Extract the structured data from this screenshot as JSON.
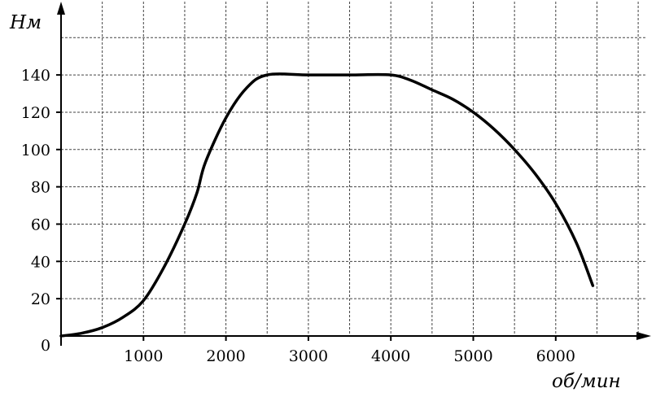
{
  "chart_data": {
    "type": "line",
    "xlabel": "об/мин",
    "ylabel": "Нм",
    "origin_label": "0",
    "xlim": [
      0,
      7200
    ],
    "ylim": [
      0,
      160
    ],
    "x_grid_step": 500,
    "y_grid_step": 20,
    "x_ticks": [
      1000,
      2000,
      3000,
      4000,
      5000,
      6000
    ],
    "y_ticks": [
      20,
      40,
      60,
      80,
      100,
      120,
      140
    ],
    "grid": true,
    "series": [
      {
        "x": [
          0,
          250,
          500,
          750,
          1000,
          1250,
          1500,
          1650,
          1750,
          2000,
          2250,
          2500,
          3000,
          3500,
          4000,
          4250,
          4500,
          4750,
          5000,
          5250,
          5500,
          5750,
          6000,
          6250,
          6450
        ],
        "y": [
          0,
          1.5,
          4.5,
          10,
          19,
          37,
          60,
          77,
          93,
          117,
          133,
          140,
          140,
          140,
          140,
          137,
          132,
          127,
          120,
          111,
          100,
          87,
          71,
          50,
          27
        ]
      }
    ]
  }
}
